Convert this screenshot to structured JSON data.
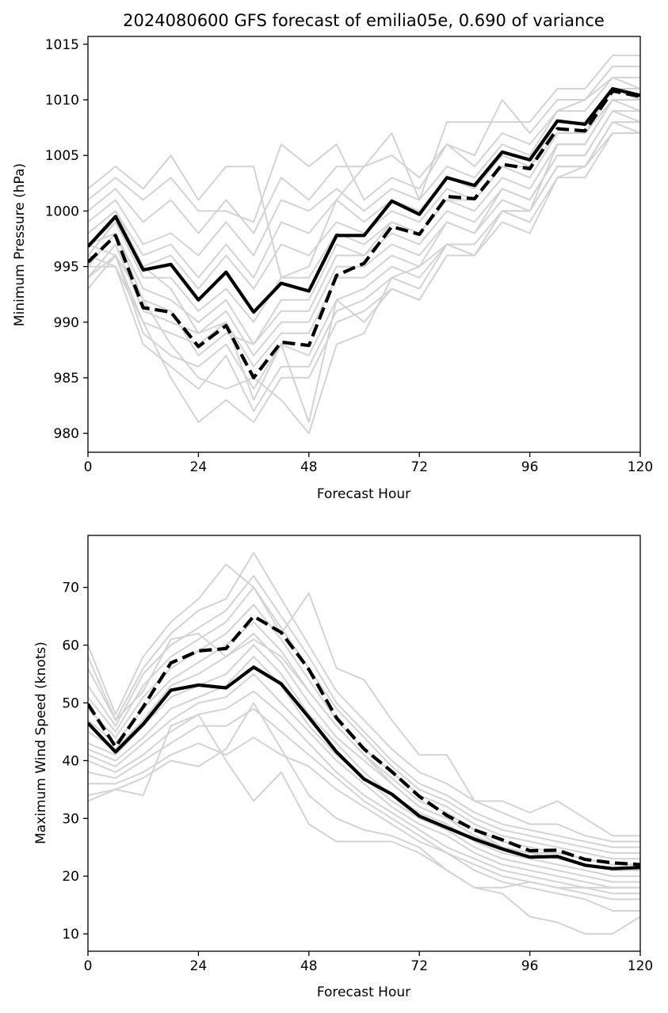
{
  "chart_data": [
    {
      "type": "line",
      "title": "2024080600 GFS forecast of emilia05e, 0.690 of variance",
      "xlabel": "Forecast Hour",
      "ylabel": "Minimum Pressure (hPa)",
      "xlim": [
        0,
        120
      ],
      "ylim": [
        978.3,
        1015.7
      ],
      "xticks": [
        0,
        24,
        48,
        72,
        96,
        120
      ],
      "yticks": [
        980,
        985,
        990,
        995,
        1000,
        1005,
        1010,
        1015
      ],
      "x": [
        0,
        6,
        12,
        18,
        24,
        30,
        36,
        42,
        48,
        54,
        60,
        66,
        72,
        78,
        84,
        90,
        96,
        102,
        108,
        114,
        120
      ],
      "grid": false,
      "series": [
        {
          "style": "solid-black",
          "values": [
            996.8,
            999.5,
            994.7,
            995.2,
            992.0,
            994.5,
            990.9,
            993.5,
            992.8,
            997.8,
            997.8,
            1000.9,
            999.7,
            1003.0,
            1002.3,
            1005.3,
            1004.6,
            1008.1,
            1007.8,
            1011.0,
            1010.4
          ]
        },
        {
          "style": "dashed-black",
          "values": [
            995.4,
            997.8,
            991.3,
            990.9,
            987.8,
            989.7,
            985.0,
            988.2,
            987.9,
            994.2,
            995.3,
            998.6,
            997.9,
            1001.3,
            1001.1,
            1004.2,
            1003.8,
            1007.4,
            1007.2,
            1010.8,
            1010.3
          ]
        },
        {
          "style": "ensemble",
          "values": [
            1002.0,
            1004.0,
            1002.0,
            1005.0,
            1001.0,
            1004.0,
            1004.0,
            994.0,
            995.0,
            1001.0,
            1004.0,
            1007.0,
            1001.0,
            1008.0,
            1008.0,
            1008.0,
            1008.0,
            1011.0,
            1011.0,
            1014.0,
            1014.0
          ]
        },
        {
          "style": "ensemble",
          "values": [
            1001.0,
            1003.0,
            1001.0,
            1003.0,
            1000.0,
            1000.0,
            999.0,
            1006.0,
            1004.0,
            1006.0,
            1001.0,
            1003.0,
            1002.0,
            1006.0,
            1005.0,
            1010.0,
            1007.0,
            1010.0,
            1010.0,
            1013.0,
            1013.0
          ]
        },
        {
          "style": "ensemble",
          "values": [
            1000.0,
            1002.0,
            999.0,
            1001.0,
            998.0,
            1001.0,
            998.0,
            1003.0,
            1001.0,
            1004.0,
            1004.0,
            1005.0,
            1003.0,
            1006.0,
            1004.0,
            1007.0,
            1006.0,
            1009.0,
            1010.0,
            1012.0,
            1012.0
          ]
        },
        {
          "style": "ensemble",
          "values": [
            999.0,
            1001.0,
            997.0,
            998.0,
            996.0,
            999.0,
            996.0,
            1001.0,
            1000.0,
            1002.0,
            1000.0,
            1002.0,
            1001.0,
            1004.0,
            1003.0,
            1006.0,
            1005.0,
            1009.0,
            1009.0,
            1012.0,
            1011.0
          ]
        },
        {
          "style": "ensemble",
          "values": [
            998.0,
            1000.0,
            996.0,
            997.0,
            994.0,
            997.0,
            994.0,
            999.0,
            998.0,
            1001.0,
            999.0,
            1001.0,
            1000.0,
            1003.0,
            1002.0,
            1005.0,
            1004.0,
            1008.0,
            1008.0,
            1011.0,
            1010.0
          ]
        },
        {
          "style": "ensemble",
          "values": [
            997.0,
            999.0,
            995.0,
            996.0,
            993.0,
            996.0,
            993.0,
            997.0,
            996.0,
            999.0,
            998.0,
            1000.0,
            999.0,
            1002.0,
            1001.0,
            1004.0,
            1003.0,
            1007.0,
            1007.0,
            1010.0,
            1010.0
          ]
        },
        {
          "style": "ensemble",
          "values": [
            996.0,
            999.0,
            994.0,
            994.0,
            991.0,
            993.0,
            990.0,
            994.0,
            994.0,
            998.0,
            997.0,
            999.0,
            998.0,
            1001.0,
            1000.0,
            1003.0,
            1002.0,
            1006.0,
            1006.0,
            1010.0,
            1009.0
          ]
        },
        {
          "style": "ensemble",
          "values": [
            995.0,
            998.0,
            993.0,
            992.0,
            990.0,
            992.0,
            988.0,
            992.0,
            992.0,
            997.0,
            996.0,
            998.0,
            997.0,
            1000.0,
            999.0,
            1002.0,
            1001.0,
            1005.0,
            1005.0,
            1009.0,
            1009.0
          ]
        },
        {
          "style": "ensemble",
          "values": [
            994.0,
            997.0,
            991.0,
            990.0,
            989.0,
            991.0,
            987.0,
            990.0,
            990.0,
            995.0,
            995.0,
            997.0,
            996.0,
            999.0,
            998.0,
            1001.0,
            1000.0,
            1004.0,
            1004.0,
            1008.0,
            1008.0
          ]
        },
        {
          "style": "ensemble",
          "values": [
            994.0,
            996.0,
            990.0,
            989.0,
            988.0,
            990.0,
            986.0,
            989.0,
            989.0,
            994.0,
            994.0,
            996.0,
            995.0,
            999.0,
            998.0,
            1002.0,
            1001.0,
            1005.0,
            1005.0,
            1009.0,
            1008.0
          ]
        },
        {
          "style": "ensemble",
          "values": [
            993.0,
            996.0,
            989.0,
            987.0,
            986.0,
            988.0,
            984.0,
            988.0,
            987.0,
            992.0,
            993.0,
            995.0,
            994.0,
            997.0,
            997.0,
            1000.0,
            1000.0,
            1004.0,
            1004.0,
            1008.0,
            1007.0
          ]
        },
        {
          "style": "ensemble",
          "values": [
            995.0,
            995.0,
            988.0,
            986.0,
            984.0,
            987.0,
            982.0,
            986.0,
            986.0,
            991.0,
            992.0,
            994.0,
            993.0,
            997.0,
            996.0,
            1000.0,
            999.0,
            1003.0,
            1004.0,
            1007.0,
            1007.0
          ]
        },
        {
          "style": "ensemble",
          "values": [
            996.0,
            995.0,
            990.0,
            985.0,
            981.0,
            983.0,
            981.0,
            985.0,
            985.0,
            990.0,
            991.0,
            993.0,
            992.0,
            996.0,
            996.0,
            999.0,
            998.0,
            1003.0,
            1003.0,
            1007.0,
            1007.0
          ]
        },
        {
          "style": "ensemble",
          "values": [
            997.0,
            996.0,
            992.0,
            988.0,
            985.0,
            984.0,
            985.0,
            983.0,
            980.0,
            988.0,
            989.0,
            994.0,
            995.0,
            997.0,
            996.0,
            1000.0,
            1000.0,
            1004.0,
            1004.0,
            1008.0,
            1008.0
          ]
        },
        {
          "style": "ensemble",
          "values": [
            998.0,
            1000.0,
            995.0,
            993.0,
            989.0,
            990.0,
            983.0,
            988.0,
            981.0,
            992.0,
            990.0,
            993.0,
            992.0,
            996.0,
            996.0,
            1000.0,
            1000.0,
            1006.0,
            1006.0,
            1010.0,
            1010.0
          ]
        },
        {
          "style": "ensemble",
          "values": [
            997.0,
            998.0,
            992.0,
            991.0,
            987.0,
            989.0,
            988.0,
            991.0,
            991.0,
            996.0,
            996.0,
            999.0,
            998.0,
            1001.0,
            1001.0,
            1004.0,
            1004.0,
            1007.0,
            1007.0,
            1011.0,
            1011.0
          ]
        }
      ]
    },
    {
      "type": "line",
      "title": "",
      "xlabel": "Forecast Hour",
      "ylabel": "Maximum Wind Speed (knots)",
      "xlim": [
        0,
        120
      ],
      "ylim": [
        7,
        79
      ],
      "xticks": [
        0,
        24,
        48,
        72,
        96,
        120
      ],
      "yticks": [
        10,
        20,
        30,
        40,
        50,
        60,
        70
      ],
      "x": [
        0,
        6,
        12,
        18,
        24,
        30,
        36,
        42,
        48,
        54,
        60,
        66,
        72,
        78,
        84,
        90,
        96,
        102,
        108,
        114,
        120
      ],
      "grid": false,
      "series": [
        {
          "style": "solid-black",
          "values": [
            46.5,
            41.5,
            46.3,
            52.2,
            53.1,
            52.6,
            56.2,
            53.3,
            47.5,
            41.5,
            36.8,
            34.2,
            30.4,
            28.4,
            26.4,
            24.7,
            23.3,
            23.4,
            21.9,
            21.3,
            21.5
          ]
        },
        {
          "style": "dashed-black",
          "values": [
            49.8,
            42.4,
            49.3,
            56.9,
            59.0,
            59.4,
            65.0,
            62.2,
            55.8,
            47.4,
            42.0,
            38.1,
            33.8,
            30.5,
            28.0,
            26.3,
            24.4,
            24.5,
            22.9,
            22.3,
            22.0
          ]
        },
        {
          "style": "ensemble",
          "values": [
            60.0,
            48.0,
            58.0,
            64.0,
            68.0,
            74.0,
            70.0,
            62.0,
            69.0,
            56.0,
            54.0,
            47.0,
            41.0,
            41.0,
            33.0,
            33.0,
            31.0,
            33.0,
            30.0,
            27.0,
            27.0
          ]
        },
        {
          "style": "ensemble",
          "values": [
            56.0,
            47.0,
            56.0,
            62.0,
            66.0,
            68.0,
            76.0,
            68.0,
            60.0,
            52.0,
            47.0,
            42.0,
            38.0,
            36.0,
            33.0,
            31.0,
            29.0,
            29.0,
            27.0,
            26.0,
            26.0
          ]
        },
        {
          "style": "ensemble",
          "values": [
            53.0,
            46.0,
            55.0,
            60.0,
            63.0,
            66.0,
            72.0,
            65.0,
            58.0,
            50.0,
            45.0,
            40.0,
            36.0,
            34.0,
            31.0,
            29.0,
            28.0,
            27.0,
            26.0,
            25.0,
            25.0
          ]
        },
        {
          "style": "ensemble",
          "values": [
            51.0,
            45.0,
            53.0,
            58.0,
            61.0,
            64.0,
            70.0,
            63.0,
            56.0,
            49.0,
            44.0,
            39.0,
            35.0,
            33.0,
            30.0,
            28.0,
            27.0,
            26.0,
            25.0,
            24.0,
            24.0
          ]
        },
        {
          "style": "ensemble",
          "values": [
            49.0,
            44.0,
            51.0,
            56.0,
            59.0,
            62.0,
            67.0,
            61.0,
            54.0,
            47.0,
            42.0,
            38.0,
            34.0,
            32.0,
            29.0,
            27.0,
            26.0,
            25.0,
            24.0,
            23.0,
            23.0
          ]
        },
        {
          "style": "ensemble",
          "values": [
            47.0,
            43.0,
            49.0,
            54.0,
            57.0,
            60.0,
            64.0,
            59.0,
            52.0,
            46.0,
            41.0,
            37.0,
            33.0,
            31.0,
            28.0,
            26.0,
            25.0,
            24.0,
            23.0,
            22.0,
            22.0
          ]
        },
        {
          "style": "ensemble",
          "values": [
            45.0,
            42.0,
            47.0,
            53.0,
            55.0,
            58.0,
            62.0,
            57.0,
            50.0,
            44.0,
            40.0,
            36.0,
            32.0,
            30.0,
            27.0,
            25.0,
            24.0,
            23.0,
            22.0,
            21.0,
            21.0
          ]
        },
        {
          "style": "ensemble",
          "values": [
            43.0,
            41.0,
            46.0,
            51.0,
            53.0,
            55.0,
            60.0,
            55.0,
            48.0,
            43.0,
            38.0,
            34.0,
            31.0,
            29.0,
            26.0,
            24.0,
            23.0,
            22.0,
            21.0,
            20.0,
            20.0
          ]
        },
        {
          "style": "ensemble",
          "values": [
            42.0,
            40.0,
            44.0,
            49.0,
            51.0,
            53.0,
            58.0,
            53.0,
            46.0,
            41.0,
            37.0,
            33.0,
            30.0,
            28.0,
            25.0,
            23.0,
            22.0,
            21.0,
            20.0,
            19.0,
            19.0
          ]
        },
        {
          "style": "ensemble",
          "values": [
            41.0,
            39.0,
            43.0,
            47.0,
            50.0,
            51.0,
            55.0,
            50.0,
            45.0,
            40.0,
            36.0,
            32.0,
            29.0,
            27.0,
            24.0,
            22.0,
            21.0,
            20.0,
            19.0,
            18.0,
            18.0
          ]
        },
        {
          "style": "ensemble",
          "values": [
            40.0,
            38.0,
            41.0,
            45.0,
            48.0,
            49.0,
            52.0,
            48.0,
            43.0,
            38.0,
            34.0,
            31.0,
            28.0,
            25.0,
            23.0,
            21.0,
            20.0,
            19.0,
            18.0,
            17.0,
            17.0
          ]
        },
        {
          "style": "ensemble",
          "values": [
            38.0,
            37.0,
            40.0,
            43.0,
            46.0,
            46.0,
            49.0,
            45.0,
            41.0,
            37.0,
            33.0,
            30.0,
            27.0,
            24.0,
            22.0,
            20.0,
            19.0,
            18.0,
            17.0,
            16.0,
            16.0
          ]
        },
        {
          "style": "ensemble",
          "values": [
            36.0,
            36.0,
            38.0,
            41.0,
            43.0,
            41.0,
            44.0,
            41.0,
            39.0,
            35.0,
            32.0,
            29.0,
            26.0,
            24.0,
            21.0,
            19.0,
            18.0,
            17.0,
            16.0,
            14.0,
            14.0
          ]
        },
        {
          "style": "ensemble",
          "values": [
            34.0,
            35.0,
            37.0,
            40.0,
            39.0,
            42.0,
            50.0,
            42.0,
            34.0,
            30.0,
            28.0,
            27.0,
            25.0,
            21.0,
            18.0,
            17.0,
            13.0,
            12.0,
            10.0,
            10.0,
            13.0
          ]
        },
        {
          "style": "ensemble",
          "values": [
            33.0,
            35.0,
            34.0,
            46.0,
            48.0,
            40.0,
            33.0,
            38.0,
            29.0,
            26.0,
            26.0,
            26.0,
            24.0,
            21.0,
            18.0,
            18.0,
            19.0,
            18.0,
            18.0,
            18.0,
            18.0
          ]
        },
        {
          "style": "ensemble",
          "values": [
            58.0,
            47.0,
            52.0,
            61.0,
            62.0,
            58.0,
            61.0,
            58.0,
            52.0,
            46.0,
            41.0,
            36.0,
            32.0,
            30.0,
            28.0,
            25.0,
            24.0,
            24.0,
            23.0,
            22.0,
            22.0
          ]
        }
      ]
    }
  ]
}
